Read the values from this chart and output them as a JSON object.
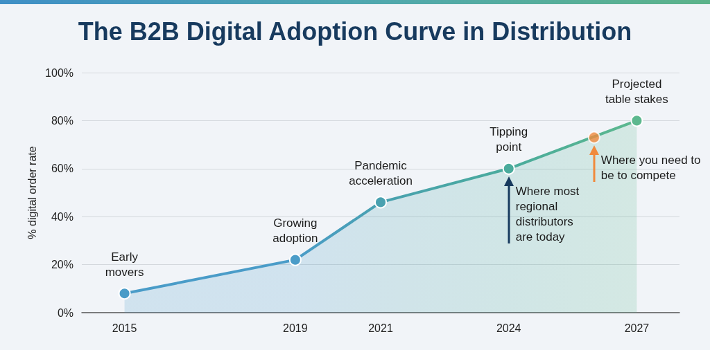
{
  "chart_data": {
    "type": "area",
    "title": "The B2B Digital Adoption Curve in Distribution",
    "ylabel": "% digital order rate",
    "x": [
      2015,
      2019,
      2021,
      2024,
      2027
    ],
    "series": [
      {
        "values": [
          8,
          22,
          46,
          60,
          80
        ],
        "colors": [
          "#4a9cc8",
          "#4a9cc8",
          "#49a1b0",
          "#4aab9c",
          "#5cb88e"
        ]
      },
      {
        "type": "scatter",
        "x": [
          2026
        ],
        "values": [
          73
        ],
        "color": "#f08a3c"
      }
    ],
    "xlim": [
      2014,
      2028
    ],
    "xticks": [
      2015,
      2019,
      2021,
      2024,
      2027
    ],
    "ylim": [
      0,
      100
    ],
    "yticks": [
      {
        "value": 0,
        "label": "0%"
      },
      {
        "value": 20,
        "label": "20%"
      },
      {
        "value": 40,
        "label": "40%"
      },
      {
        "value": 60,
        "label": "60%"
      },
      {
        "value": 80,
        "label": "80%"
      },
      {
        "value": 100,
        "label": "100%"
      }
    ],
    "grid": "y",
    "marker": "circle",
    "line_style": "solid",
    "annotations": [
      {
        "text": "Early movers",
        "x": 2015,
        "y": 8
      },
      {
        "text": "Growing adoption",
        "x": 2019,
        "y": 22
      },
      {
        "text": "Pandemic acceleration",
        "x": 2021,
        "y": 46
      },
      {
        "text": "Tipping point",
        "x": 2024,
        "y": 60
      },
      {
        "text": "Projected table stakes",
        "x": 2027,
        "y": 80
      },
      {
        "text": "Where most regional distributors are today",
        "x": 2024,
        "y": 60
      },
      {
        "text": "Where you need to be to compete",
        "x": 2026,
        "y": 73
      }
    ]
  }
}
